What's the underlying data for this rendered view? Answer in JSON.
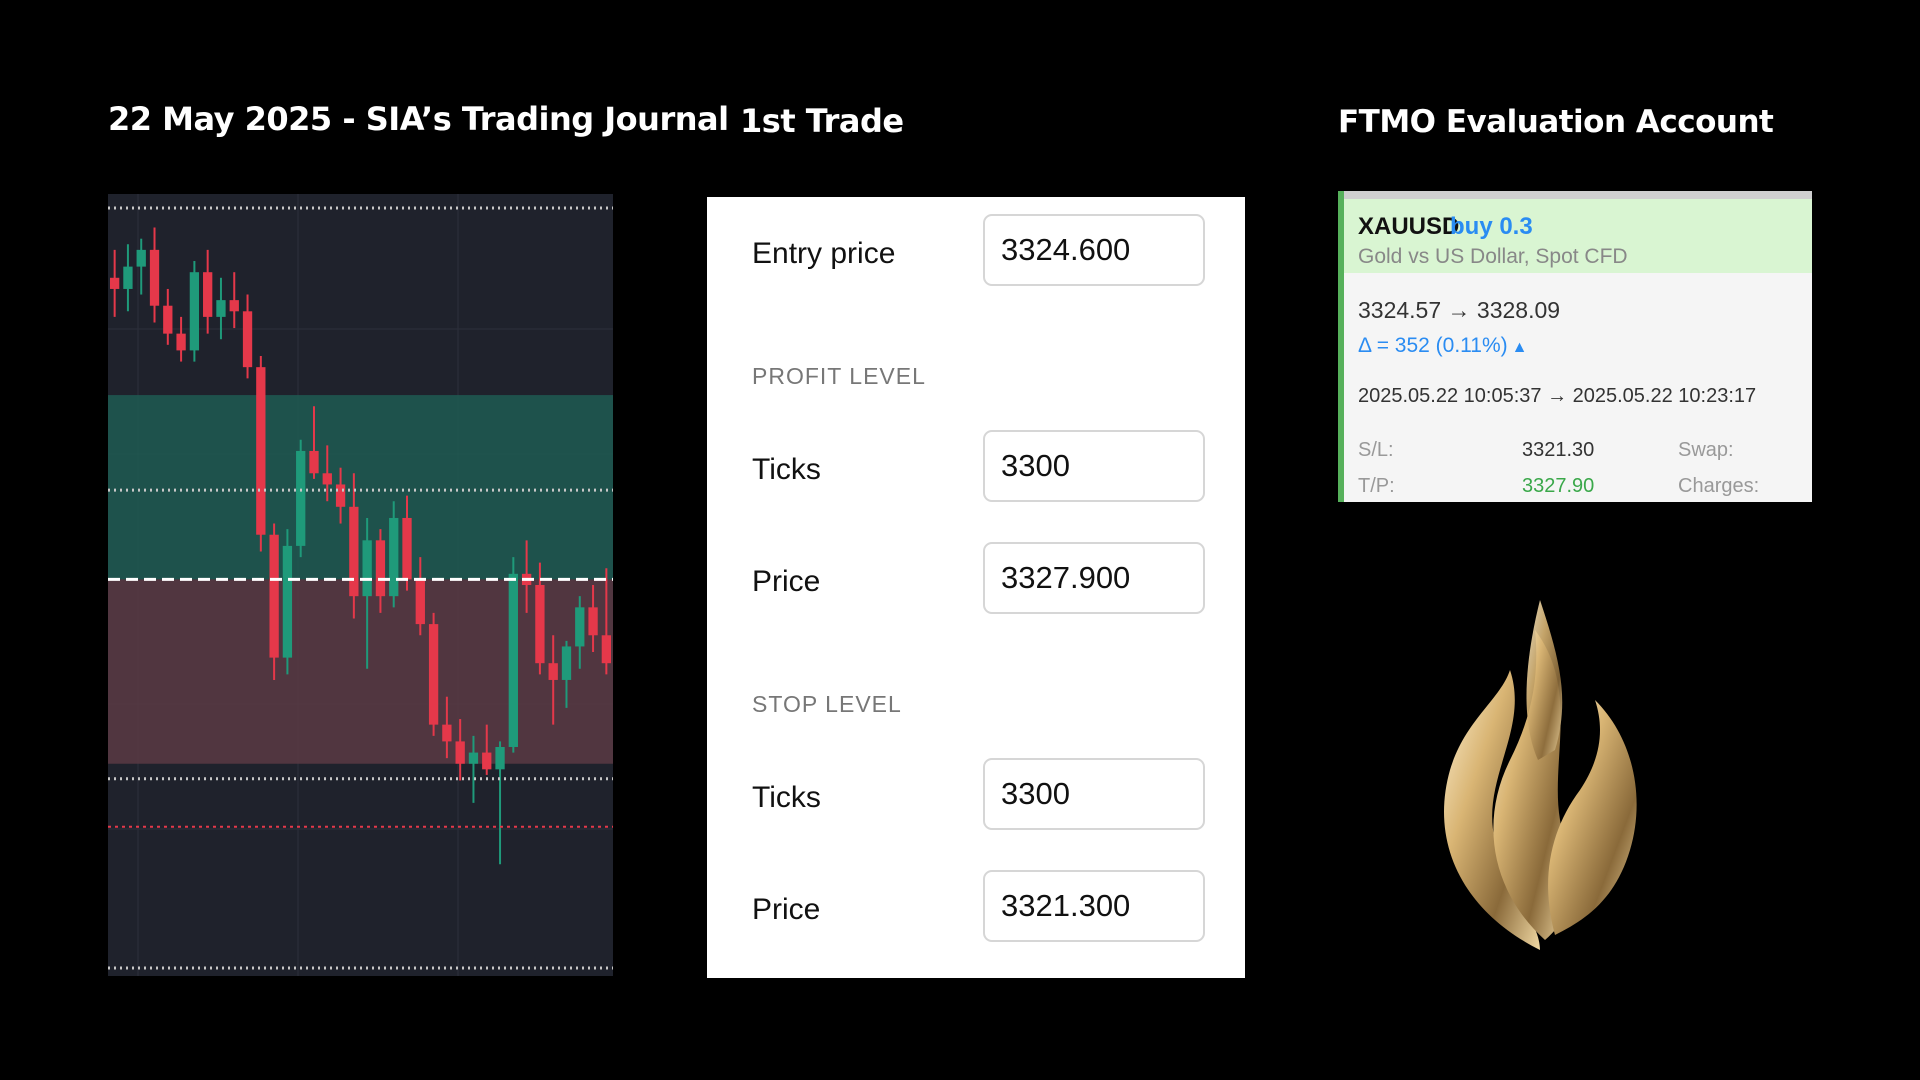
{
  "header": {
    "title": "22 May 2025 - SIA’s Trading Journal",
    "subtitle": "1st Trade",
    "account_title": "FTMO Evaluation Account"
  },
  "order_form": {
    "entry": {
      "label": "Entry price",
      "value": "3324.600"
    },
    "profit": {
      "section_label": "PROFIT LEVEL",
      "ticks_label": "Ticks",
      "ticks_value": "3300",
      "price_label": "Price",
      "price_value": "3327.900"
    },
    "stop": {
      "section_label": "STOP LEVEL",
      "ticks_label": "Ticks",
      "ticks_value": "3300",
      "price_label": "Price",
      "price_value": "3321.300"
    }
  },
  "trade_card": {
    "symbol": "XAUUSD",
    "side": "buy 0.3",
    "description": "Gold vs US Dollar, Spot CFD",
    "price_move": "3324.57 → 3328.09",
    "delta": "Δ = 352 (0.11%)",
    "time_range": "2025.05.22 10:05:37 → 2025.05.22 10:23:17",
    "sl_label": "S/L:",
    "sl_value": "3321.30",
    "swap_label": "Swap:",
    "tp_label": "T/P:",
    "tp_value": "3327.90",
    "charges_label": "Charges:",
    "colors": {
      "header_bg": "#d9f5d2",
      "side": "#2a8cf2",
      "tp": "#3aa84a",
      "accent": "#56b05b"
    }
  },
  "chart_data": {
    "type": "candlestick",
    "entry": 3324.6,
    "take_profit": 3327.9,
    "stop_loss": 3321.3,
    "ylim": [
      3317.5,
      3331.5
    ],
    "colors": {
      "up": "#1f9a7a",
      "down": "#e5384a",
      "profit_zone": "#1f5b52",
      "loss_zone": "#5a3a44"
    },
    "candles": [
      {
        "o": 3330.0,
        "h": 3330.5,
        "l": 3329.3,
        "c": 3329.8
      },
      {
        "o": 3329.8,
        "h": 3330.6,
        "l": 3329.4,
        "c": 3330.2
      },
      {
        "o": 3330.2,
        "h": 3330.7,
        "l": 3329.7,
        "c": 3330.5
      },
      {
        "o": 3330.5,
        "h": 3330.9,
        "l": 3329.2,
        "c": 3329.5
      },
      {
        "o": 3329.5,
        "h": 3329.8,
        "l": 3328.8,
        "c": 3329.0
      },
      {
        "o": 3329.0,
        "h": 3329.3,
        "l": 3328.5,
        "c": 3328.7
      },
      {
        "o": 3328.7,
        "h": 3330.3,
        "l": 3328.5,
        "c": 3330.1
      },
      {
        "o": 3330.1,
        "h": 3330.5,
        "l": 3329.0,
        "c": 3329.3
      },
      {
        "o": 3329.3,
        "h": 3330.0,
        "l": 3328.9,
        "c": 3329.6
      },
      {
        "o": 3329.6,
        "h": 3330.1,
        "l": 3329.1,
        "c": 3329.4
      },
      {
        "o": 3329.4,
        "h": 3329.7,
        "l": 3328.2,
        "c": 3328.4
      },
      {
        "o": 3328.4,
        "h": 3328.6,
        "l": 3325.1,
        "c": 3325.4
      },
      {
        "o": 3325.4,
        "h": 3325.6,
        "l": 3322.8,
        "c": 3323.2
      },
      {
        "o": 3323.2,
        "h": 3325.5,
        "l": 3322.9,
        "c": 3325.2
      },
      {
        "o": 3325.2,
        "h": 3327.1,
        "l": 3325.0,
        "c": 3326.9
      },
      {
        "o": 3326.9,
        "h": 3327.7,
        "l": 3326.4,
        "c": 3326.5
      },
      {
        "o": 3326.5,
        "h": 3327.0,
        "l": 3326.0,
        "c": 3326.3
      },
      {
        "o": 3326.3,
        "h": 3326.6,
        "l": 3325.6,
        "c": 3325.9
      },
      {
        "o": 3325.9,
        "h": 3326.5,
        "l": 3323.9,
        "c": 3324.3
      },
      {
        "o": 3324.3,
        "h": 3325.7,
        "l": 3323.0,
        "c": 3325.3
      },
      {
        "o": 3325.3,
        "h": 3325.5,
        "l": 3324.0,
        "c": 3324.3
      },
      {
        "o": 3324.3,
        "h": 3326.0,
        "l": 3324.1,
        "c": 3325.7
      },
      {
        "o": 3325.7,
        "h": 3326.1,
        "l": 3324.4,
        "c": 3324.6
      },
      {
        "o": 3324.6,
        "h": 3325.0,
        "l": 3323.6,
        "c": 3323.8
      },
      {
        "o": 3323.8,
        "h": 3324.0,
        "l": 3321.8,
        "c": 3322.0
      },
      {
        "o": 3322.0,
        "h": 3322.5,
        "l": 3321.4,
        "c": 3321.7
      },
      {
        "o": 3321.7,
        "h": 3322.1,
        "l": 3321.0,
        "c": 3321.3
      },
      {
        "o": 3321.3,
        "h": 3321.8,
        "l": 3320.6,
        "c": 3321.5
      },
      {
        "o": 3321.5,
        "h": 3322.0,
        "l": 3321.1,
        "c": 3321.2
      },
      {
        "o": 3321.2,
        "h": 3321.7,
        "l": 3319.5,
        "c": 3321.6
      },
      {
        "o": 3321.6,
        "h": 3325.0,
        "l": 3321.5,
        "c": 3324.7
      },
      {
        "o": 3324.7,
        "h": 3325.3,
        "l": 3324.0,
        "c": 3324.5
      },
      {
        "o": 3324.5,
        "h": 3324.9,
        "l": 3322.9,
        "c": 3323.1
      },
      {
        "o": 3323.1,
        "h": 3323.6,
        "l": 3322.0,
        "c": 3322.8
      },
      {
        "o": 3322.8,
        "h": 3323.5,
        "l": 3322.3,
        "c": 3323.4
      },
      {
        "o": 3323.4,
        "h": 3324.3,
        "l": 3323.0,
        "c": 3324.1
      },
      {
        "o": 3324.1,
        "h": 3324.5,
        "l": 3323.3,
        "c": 3323.6
      },
      {
        "o": 3323.6,
        "h": 3324.8,
        "l": 3322.9,
        "c": 3323.1
      }
    ]
  }
}
